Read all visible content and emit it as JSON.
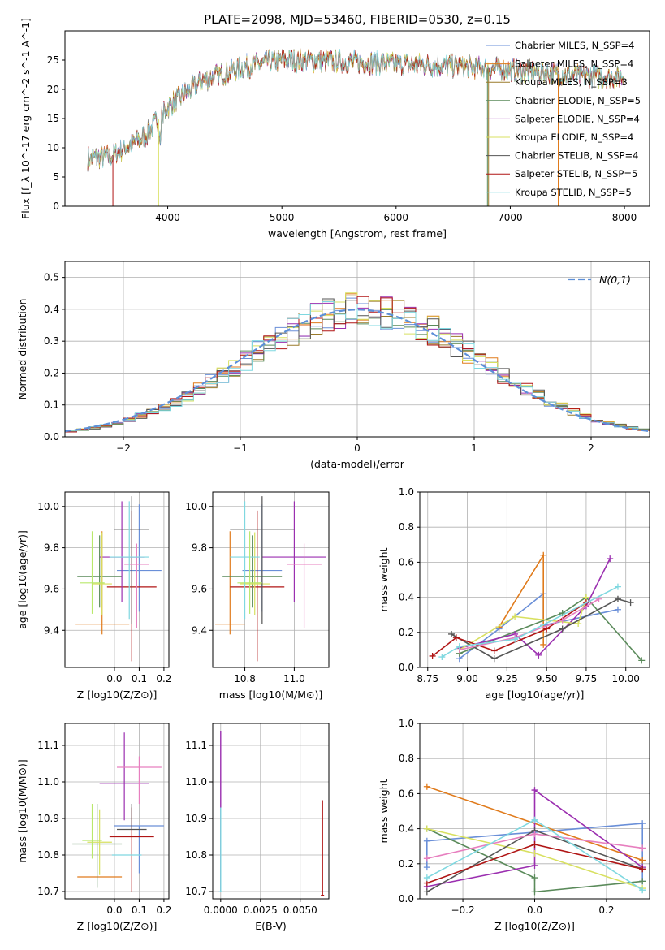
{
  "figure_title": "PLATE=2098, MJD=53460, FIBERID=0530, z=0.15",
  "series_colors": [
    "#6a8fd8",
    "#e07b1c",
    "#9a7a2a",
    "#5a8a5a",
    "#9b2fb0",
    "#d8e060",
    "#555555",
    "#b01515",
    "#7fd8e0"
  ],
  "extra_colors": {
    "pink": "#e77fbf",
    "green_light": "#b9e86b",
    "blue_light": "#7ba7e6"
  },
  "chart_data": [
    {
      "type": "line",
      "id": "spectrum",
      "xlabel": "wavelength [Angstrom, rest frame]",
      "ylabel": "Flux [f_λ 10^-17 erg cm^-2 s^-1 A^-1]",
      "xlim": [
        3100,
        8220
      ],
      "ylim": [
        0,
        30
      ],
      "xticks": [
        4000,
        5000,
        6000,
        7000,
        8000
      ],
      "yticks": [
        0,
        5,
        10,
        15,
        20,
        25
      ],
      "grid": false,
      "legend_position": "top-right",
      "legend": [
        "Chabrier MILES, N_SSP=4",
        "Salpeter MILES, N_SSP=4",
        "Kroupa MILES, N_SSP=3",
        "Chabrier ELODIE, N_SSP=5",
        "Salpeter ELODIE, N_SSP=4",
        "Kroupa ELODIE, N_SSP=4",
        "Chabrier STELIB, N_SSP=4",
        "Salpeter STELIB, N_SSP=5",
        "Kroupa STELIB, N_SSP=5"
      ],
      "continuum_x": [
        3300,
        3500,
        3800,
        4000,
        4300,
        4700,
        5000,
        5500,
        6000,
        6500,
        7000,
        7500,
        8000
      ],
      "continuum_y": [
        8.2,
        8.5,
        12,
        17,
        21.5,
        24,
        25,
        24.8,
        24.3,
        24,
        23.3,
        22.5,
        22
      ]
    },
    {
      "type": "bar",
      "id": "residual-histogram",
      "xlabel": "(data-model)/error",
      "ylabel": "Normed distribution",
      "xlim": [
        -2.5,
        2.5
      ],
      "ylim": [
        0,
        0.55
      ],
      "xticks": [
        -2,
        -1,
        0,
        1,
        2
      ],
      "yticks": [
        0.0,
        0.1,
        0.2,
        0.3,
        0.4,
        0.5
      ],
      "grid": true,
      "legend_position": "top-right",
      "reference_curve": "N(0,1)",
      "bin_width": 0.1
    },
    {
      "type": "scatter",
      "id": "age-vs-Z",
      "xlabel": "Z [log10(Z/Z⊙)]",
      "ylabel": "age [log10(age/yr)]",
      "xlim": [
        -0.2,
        0.22
      ],
      "ylim": [
        9.22,
        10.07
      ],
      "xticks": [
        0.0,
        0.1,
        0.2
      ],
      "yticks": [
        9.4,
        9.6,
        9.8,
        10.0
      ],
      "grid": true,
      "points": [
        {
          "x": 0.1,
          "y": 9.69,
          "xerr": 0.09,
          "yerr_lo": 0.2,
          "yerr_hi": 0.32,
          "color": "#6a8fd8"
        },
        {
          "x": -0.05,
          "y": 9.43,
          "xerr": 0.11,
          "yerr_lo": 0.05,
          "yerr_hi": 0.45,
          "color": "#e07b1c"
        },
        {
          "x": 0.07,
          "y": 9.61,
          "xerr": 0.1,
          "yerr_lo": 0.36,
          "yerr_hi": 0.37,
          "color": "#b01515"
        },
        {
          "x": -0.06,
          "y": 9.66,
          "xerr": 0.09,
          "yerr_lo": 0.15,
          "yerr_hi": 0.2,
          "color": "#5a8a5a"
        },
        {
          "x": 0.03,
          "y": 9.755,
          "xerr": 0.09,
          "yerr_lo": 0.22,
          "yerr_hi": 0.27,
          "color": "#9b2fb0"
        },
        {
          "x": -0.05,
          "y": 9.625,
          "xerr": 0.04,
          "yerr_lo": 0.15,
          "yerr_hi": 0.25,
          "color": "#d8e060"
        },
        {
          "x": 0.07,
          "y": 9.89,
          "xerr": 0.07,
          "yerr_lo": 0.46,
          "yerr_hi": 0.16,
          "color": "#555555"
        },
        {
          "x": 0.09,
          "y": 9.72,
          "xerr": 0.05,
          "yerr_lo": 0.31,
          "yerr_hi": 0.1,
          "color": "#e77fbf"
        },
        {
          "x": 0.06,
          "y": 9.755,
          "xerr": 0.08,
          "yerr_lo": 0.3,
          "yerr_hi": 0.27,
          "color": "#7fd8e0"
        },
        {
          "x": -0.09,
          "y": 9.63,
          "xerr": 0.05,
          "yerr_lo": 0.15,
          "yerr_hi": 0.25,
          "color": "#b9e86b"
        }
      ]
    },
    {
      "type": "scatter",
      "id": "age-vs-mass",
      "xlabel": "mass [log10(M/M⊙)]",
      "ylabel": "",
      "xlim": [
        10.67,
        11.14
      ],
      "ylim": [
        9.22,
        10.07
      ],
      "xticks": [
        10.8,
        11.0
      ],
      "yticks": [
        9.4,
        9.6,
        9.8,
        10.0
      ],
      "grid": true,
      "points": [
        {
          "x": 10.87,
          "y": 9.69,
          "xerr": 0.08,
          "yerr_lo": 0.2,
          "yerr_hi": 0.32,
          "color": "#6a8fd8"
        },
        {
          "x": 10.74,
          "y": 9.43,
          "xerr": 0.06,
          "yerr_lo": 0.05,
          "yerr_hi": 0.45,
          "color": "#e07b1c"
        },
        {
          "x": 10.85,
          "y": 9.61,
          "xerr": 0.11,
          "yerr_lo": 0.36,
          "yerr_hi": 0.37,
          "color": "#b01515"
        },
        {
          "x": 10.83,
          "y": 9.66,
          "xerr": 0.12,
          "yerr_lo": 0.15,
          "yerr_hi": 0.2,
          "color": "#5a8a5a"
        },
        {
          "x": 11.0,
          "y": 9.755,
          "xerr": 0.13,
          "yerr_lo": 0.22,
          "yerr_hi": 0.27,
          "color": "#9b2fb0"
        },
        {
          "x": 10.84,
          "y": 9.625,
          "xerr": 0.06,
          "yerr_lo": 0.15,
          "yerr_hi": 0.25,
          "color": "#d8e060"
        },
        {
          "x": 10.87,
          "y": 9.89,
          "xerr": 0.13,
          "yerr_lo": 0.46,
          "yerr_hi": 0.16,
          "color": "#555555"
        },
        {
          "x": 11.04,
          "y": 9.72,
          "xerr": 0.07,
          "yerr_lo": 0.31,
          "yerr_hi": 0.1,
          "color": "#e77fbf"
        },
        {
          "x": 10.8,
          "y": 9.755,
          "xerr": 0.06,
          "yerr_lo": 0.3,
          "yerr_hi": 0.27,
          "color": "#7fd8e0"
        },
        {
          "x": 10.82,
          "y": 9.63,
          "xerr": 0.05,
          "yerr_lo": 0.15,
          "yerr_hi": 0.25,
          "color": "#b9e86b"
        }
      ]
    },
    {
      "type": "line",
      "id": "mass-weight-vs-age",
      "xlabel": "age [log10(age/yr)]",
      "ylabel": "mass weight",
      "xlim": [
        8.7,
        10.15
      ],
      "ylim": [
        0,
        1
      ],
      "xticks": [
        8.75,
        9.0,
        9.25,
        9.5,
        9.75,
        10.0
      ],
      "yticks": [
        0.0,
        0.2,
        0.4,
        0.6,
        0.8,
        1.0
      ],
      "grid": true,
      "series": [
        {
          "color": "#6a8fd8",
          "x": [
            8.95,
            9.2,
            9.48,
            9.48,
            9.95
          ],
          "y": [
            0.05,
            0.22,
            0.42,
            0.24,
            0.33
          ]
        },
        {
          "color": "#e07b1c",
          "x": [
            9.2,
            9.48,
            9.48
          ],
          "y": [
            0.23,
            0.64,
            0.13
          ]
        },
        {
          "color": "#5a8a5a",
          "x": [
            8.95,
            9.6,
            9.75,
            10.1
          ],
          "y": [
            0.08,
            0.31,
            0.4,
            0.04
          ]
        },
        {
          "color": "#9b2fb0",
          "x": [
            8.95,
            9.3,
            9.45,
            9.75,
            9.9
          ],
          "y": [
            0.11,
            0.19,
            0.07,
            0.35,
            0.62
          ]
        },
        {
          "color": "#d8e060",
          "x": [
            8.95,
            9.3,
            9.7,
            9.75
          ],
          "y": [
            0.1,
            0.29,
            0.25,
            0.4
          ]
        },
        {
          "color": "#555555",
          "x": [
            8.9,
            9.17,
            9.6,
            9.95,
            10.03
          ],
          "y": [
            0.19,
            0.05,
            0.22,
            0.39,
            0.37
          ]
        },
        {
          "color": "#b01515",
          "x": [
            8.78,
            8.93,
            9.17,
            9.5,
            9.75
          ],
          "y": [
            0.065,
            0.17,
            0.095,
            0.22,
            0.37
          ]
        },
        {
          "color": "#e77fbf",
          "x": [
            8.95,
            9.3,
            9.6,
            9.83
          ],
          "y": [
            0.1,
            0.17,
            0.27,
            0.39
          ]
        },
        {
          "color": "#7fd8e0",
          "x": [
            8.84,
            8.95,
            9.3,
            9.95
          ],
          "y": [
            0.06,
            0.12,
            0.16,
            0.46
          ]
        }
      ]
    },
    {
      "type": "scatter",
      "id": "mass-vs-Z",
      "xlabel": "Z [log10(Z/Z⊙)]",
      "ylabel": "mass [log10(M/M⊙)]",
      "xlim": [
        -0.2,
        0.22
      ],
      "ylim": [
        10.68,
        11.16
      ],
      "xticks": [
        0.0,
        0.1,
        0.2
      ],
      "yticks": [
        10.7,
        10.8,
        10.9,
        11.0,
        11.1
      ],
      "grid": true,
      "points": [
        {
          "x": 0.1,
          "y": 10.88,
          "xerr": 0.1,
          "yerr_lo": 0.13,
          "yerr_hi": 0.0,
          "color": "#6a8fd8"
        },
        {
          "x": -0.06,
          "y": 10.74,
          "xerr": 0.09,
          "yerr_lo": 0.0,
          "yerr_hi": 0.0,
          "color": "#e07b1c"
        },
        {
          "x": 0.07,
          "y": 10.85,
          "xerr": 0.09,
          "yerr_lo": 0.15,
          "yerr_hi": 0.08,
          "color": "#b01515"
        },
        {
          "x": -0.07,
          "y": 10.83,
          "xerr": 0.1,
          "yerr_lo": 0.12,
          "yerr_hi": 0.11,
          "color": "#5a8a5a"
        },
        {
          "x": 0.04,
          "y": 10.995,
          "xerr": 0.1,
          "yerr_lo": 0.1,
          "yerr_hi": 0.14,
          "color": "#9b2fb0"
        },
        {
          "x": -0.06,
          "y": 10.835,
          "xerr": 0.05,
          "yerr_lo": 0.09,
          "yerr_hi": 0.09,
          "color": "#d8e060"
        },
        {
          "x": 0.07,
          "y": 10.87,
          "xerr": 0.06,
          "yerr_lo": 0.0,
          "yerr_hi": 0.07,
          "color": "#555555"
        },
        {
          "x": 0.1,
          "y": 11.04,
          "xerr": 0.09,
          "yerr_lo": 0.1,
          "yerr_hi": 0.03,
          "color": "#e77fbf"
        },
        {
          "x": 0.05,
          "y": 10.8,
          "xerr": 0.06,
          "yerr_lo": 0.0,
          "yerr_hi": 0.0,
          "color": "#7fd8e0"
        },
        {
          "x": -0.09,
          "y": 10.84,
          "xerr": 0.04,
          "yerr_lo": 0.05,
          "yerr_hi": 0.1,
          "color": "#b9e86b"
        }
      ]
    },
    {
      "type": "scatter",
      "id": "mass-vs-ebv",
      "xlabel": "E(B-V)",
      "ylabel": "",
      "xlim": [
        -0.0005,
        0.0068
      ],
      "ylim": [
        10.68,
        11.16
      ],
      "xticks": [
        0.0,
        0.0025,
        0.005
      ],
      "xtick_labels": [
        "0.0000",
        "0.0025",
        "0.0050"
      ],
      "yticks": [
        10.7,
        10.8,
        10.9,
        11.0,
        11.1
      ],
      "grid": true,
      "vertical_bars": [
        {
          "x": 0.0,
          "y_lo": 10.7,
          "y_hi": 11.14,
          "color": "#9b2fb0"
        },
        {
          "x": 0.0,
          "y_lo": 10.7,
          "y_hi": 10.93,
          "color": "#7fd8e0"
        },
        {
          "x": 0.0064,
          "y_lo": 10.69,
          "y_hi": 10.95,
          "color": "#b01515"
        }
      ]
    },
    {
      "type": "line",
      "id": "mass-weight-vs-Z",
      "xlabel": "Z [log10(Z/Z⊙)]",
      "ylabel": "mass weight",
      "xlim": [
        -0.32,
        0.32
      ],
      "ylim": [
        0,
        1
      ],
      "xticks": [
        -0.2,
        0.0,
        0.2
      ],
      "yticks": [
        0.0,
        0.2,
        0.4,
        0.6,
        0.8,
        1.0
      ],
      "grid": true,
      "series": [
        {
          "color": "#6a8fd8",
          "x": [
            -0.3,
            -0.3,
            0.0,
            0.3,
            0.3
          ],
          "y": [
            0.18,
            0.33,
            0.38,
            0.43,
            0.1
          ]
        },
        {
          "color": "#e07b1c",
          "x": [
            -0.3,
            0.3
          ],
          "y": [
            0.64,
            0.22
          ]
        },
        {
          "color": "#5a8a5a",
          "x": [
            -0.3,
            0.0,
            0.0,
            0.3
          ],
          "y": [
            0.4,
            0.12,
            0.04,
            0.1
          ]
        },
        {
          "color": "#9b2fb0",
          "x": [
            -0.3,
            0.0,
            0.0,
            0.3
          ],
          "y": [
            0.07,
            0.19,
            0.62,
            0.18
          ]
        },
        {
          "color": "#d8e060",
          "x": [
            -0.3,
            0.0,
            0.3
          ],
          "y": [
            0.4,
            0.26,
            0.06
          ]
        },
        {
          "color": "#555555",
          "x": [
            -0.3,
            0.0,
            0.3
          ],
          "y": [
            0.04,
            0.39,
            0.17
          ]
        },
        {
          "color": "#b01515",
          "x": [
            -0.3,
            0.0,
            0.3
          ],
          "y": [
            0.09,
            0.31,
            0.17
          ]
        },
        {
          "color": "#e77fbf",
          "x": [
            -0.3,
            0.0,
            0.3
          ],
          "y": [
            0.23,
            0.37,
            0.29
          ]
        },
        {
          "color": "#7fd8e0",
          "x": [
            -0.3,
            0.0,
            0.3
          ],
          "y": [
            0.12,
            0.45,
            0.05
          ]
        }
      ]
    }
  ]
}
